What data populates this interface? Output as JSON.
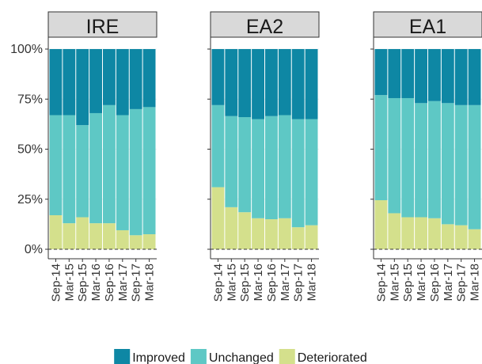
{
  "chart_data": {
    "type": "bar",
    "stacked": true,
    "categories": [
      "Sep-14",
      "Mar-15",
      "Sep-15",
      "Mar-16",
      "Sep-16",
      "Mar-17",
      "Sep-17",
      "Mar-18"
    ],
    "ylim": [
      0,
      100
    ],
    "yticks": [
      {
        "value": 0,
        "label": "0%"
      },
      {
        "value": 25,
        "label": "25%"
      },
      {
        "value": 50,
        "label": "50%"
      },
      {
        "value": 75,
        "label": "75%"
      },
      {
        "value": 100,
        "label": "100%"
      }
    ],
    "legend_position": "bottom",
    "legend": [
      {
        "name": "Improved",
        "color": "#0e87a4"
      },
      {
        "name": "Unchanged",
        "color": "#5ec8c5"
      },
      {
        "name": "Deteriorated",
        "color": "#d4e08c"
      }
    ],
    "facets": [
      {
        "title": "IRE",
        "series": [
          {
            "values": [
              33,
              33,
              38,
              32,
              28,
              33,
              30,
              29
            ]
          },
          {
            "values": [
              50,
              54,
              46,
              55,
              59,
              57.5,
              63,
              63.5
            ]
          },
          {
            "values": [
              17,
              13,
              16,
              13,
              13,
              9.5,
              7,
              7.5
            ]
          }
        ]
      },
      {
        "title": "EA2",
        "series": [
          {
            "values": [
              28,
              33.5,
              34,
              35,
              33.5,
              33,
              35,
              35
            ]
          },
          {
            "values": [
              41,
              45.5,
              47.5,
              49.5,
              51.5,
              51.5,
              54,
              53
            ]
          },
          {
            "values": [
              31,
              21,
              18.5,
              15.5,
              15,
              15.5,
              11,
              12
            ]
          }
        ]
      },
      {
        "title": "EA1",
        "series": [
          {
            "values": [
              23,
              24.5,
              24.5,
              27,
              26,
              27,
              28,
              28
            ]
          },
          {
            "values": [
              52.5,
              57.5,
              59.5,
              57,
              58.5,
              60.5,
              60,
              62
            ]
          },
          {
            "values": [
              24.5,
              18,
              16,
              16,
              15.5,
              12.5,
              12,
              10
            ]
          }
        ]
      }
    ]
  }
}
